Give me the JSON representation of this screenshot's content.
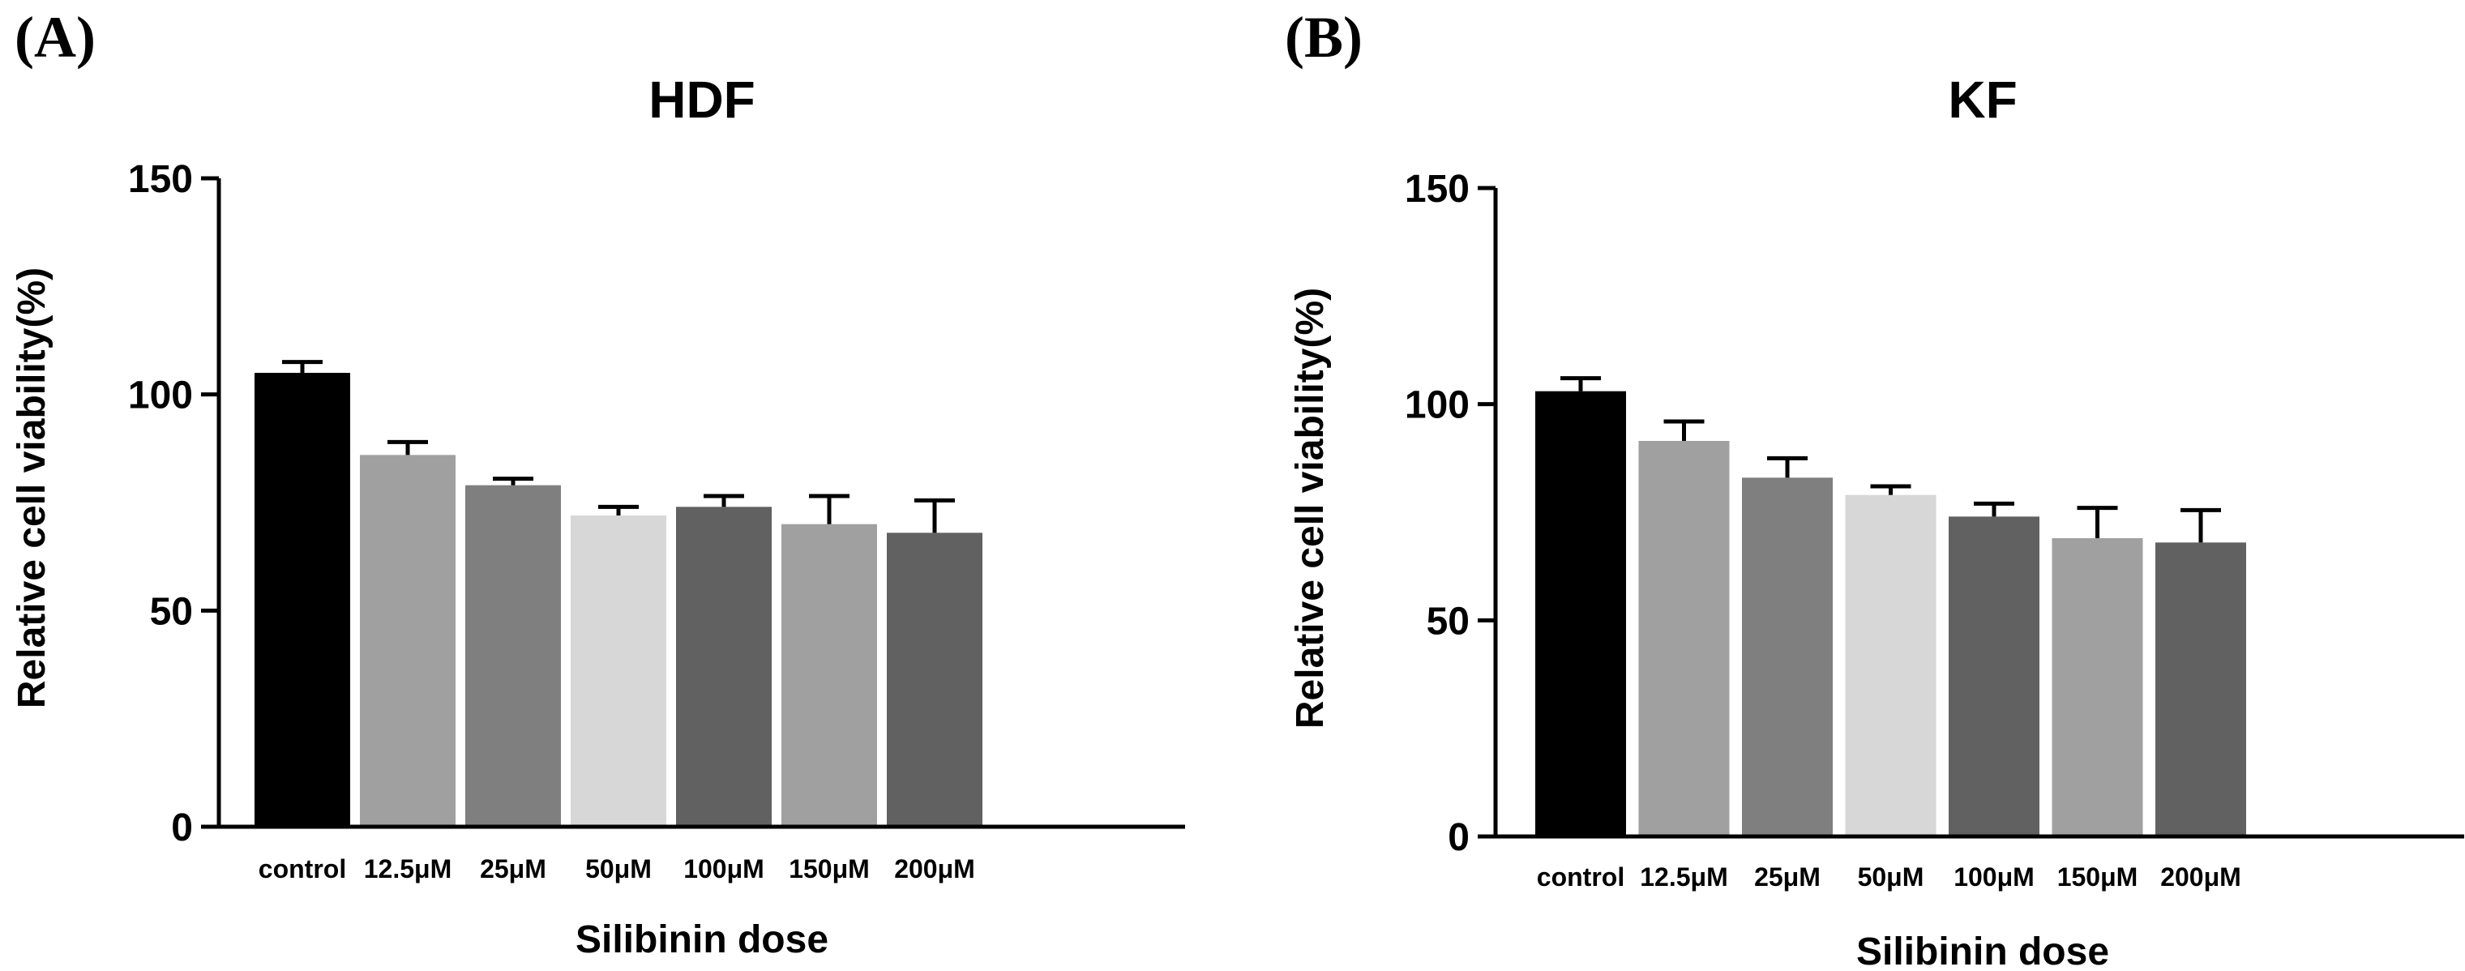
{
  "chart_data": [
    {
      "type": "bar",
      "panel_label": "(A)",
      "title": "HDF",
      "xlabel": "Silibinin dose",
      "ylabel": "Relative cell viability(%)",
      "ylim": [
        0,
        150
      ],
      "yticks": [
        "0",
        "50",
        "100",
        "150"
      ],
      "categories": [
        "control",
        "12.5μM",
        "25μM",
        "50μM",
        "100μM",
        "150μM",
        "200μM"
      ],
      "values": [
        105,
        86,
        79,
        72,
        74,
        70,
        68
      ],
      "error_upper": [
        2.5,
        3,
        1.5,
        2,
        2.5,
        6.5,
        7.5
      ],
      "bar_colors": [
        "#000000",
        "#a0a0a0",
        "#7f7f7f",
        "#d7d7d7",
        "#616161",
        "#a0a0a0",
        "#616161"
      ]
    },
    {
      "type": "bar",
      "panel_label": "(B)",
      "title": "KF",
      "xlabel": "Silibinin dose",
      "ylabel": "Relative cell viability(%)",
      "ylim": [
        0,
        150
      ],
      "yticks": [
        "0",
        "50",
        "100",
        "150"
      ],
      "categories": [
        "control",
        "12.5μM",
        "25μM",
        "50μM",
        "100μM",
        "150μM",
        "200μM"
      ],
      "values": [
        103,
        91.5,
        83,
        79,
        74,
        69,
        68
      ],
      "error_upper": [
        3,
        4.5,
        4.5,
        2,
        3,
        7,
        7.5
      ],
      "bar_colors": [
        "#000000",
        "#a0a0a0",
        "#7f7f7f",
        "#d7d7d7",
        "#616161",
        "#a0a0a0",
        "#616161"
      ]
    }
  ]
}
